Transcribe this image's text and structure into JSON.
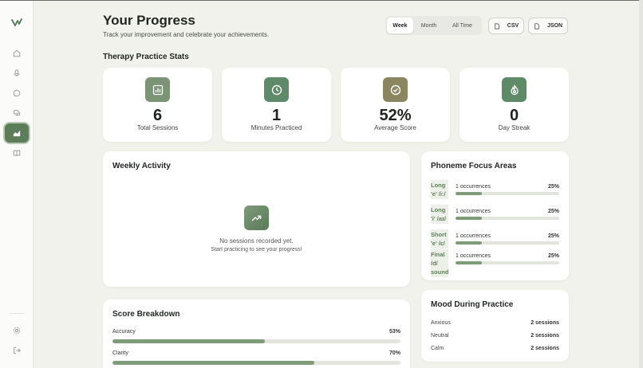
{
  "header": {
    "title": "Your Progress",
    "subtitle": "Track your improvement and celebrate your achievements."
  },
  "range": {
    "options": [
      "Week",
      "Month",
      "All Time"
    ],
    "selected": "Week"
  },
  "export": {
    "csv_label": "CSV",
    "json_label": "JSON"
  },
  "stats_section": {
    "title": "Therapy Practice Stats",
    "cards": [
      {
        "value": "6",
        "label": "Total Sessions",
        "icon": "bar-chart-icon",
        "color": "#7b9476"
      },
      {
        "value": "1",
        "label": "Minutes Practiced",
        "icon": "clock-icon",
        "color": "#5f8a6a"
      },
      {
        "value": "52%",
        "label": "Average Score",
        "icon": "check-circle-icon",
        "color": "#8b8660"
      },
      {
        "value": "0",
        "label": "Day Streak",
        "icon": "flame-icon",
        "color": "#5e8a68"
      }
    ]
  },
  "weekly_activity": {
    "title": "Weekly Activity",
    "empty_title": "No sessions recorded yet.",
    "empty_subtitle": "Start practicing to see your progress!"
  },
  "score_breakdown": {
    "title": "Score Breakdown",
    "rows": [
      {
        "label": "Accuracy",
        "percent_text": "53%",
        "percent": 53
      },
      {
        "label": "Clarity",
        "percent_text": "70%",
        "percent": 70
      }
    ]
  },
  "phoneme": {
    "title": "Phoneme Focus Areas",
    "rows": [
      {
        "line1": "Long",
        "line2": "'e' /iː/",
        "count": "1 occurrences",
        "percent_text": "25%",
        "percent": 25
      },
      {
        "line1": "Long",
        "line2": "'i' /aɪ/",
        "count": "1 occurrences",
        "percent_text": "25%",
        "percent": 25
      },
      {
        "line1": "Short",
        "line2": "'e' /ɛ/",
        "count": "1 occurrences",
        "percent_text": "25%",
        "percent": 25
      },
      {
        "line1": "Final",
        "line2": "/d/",
        "line3": "sound",
        "count": "1 occurrences",
        "percent_text": "25%",
        "percent": 25
      }
    ]
  },
  "mood": {
    "title": "Mood During Practice",
    "rows": [
      {
        "label": "Anxious",
        "count": "2 sessions"
      },
      {
        "label": "Neutral",
        "count": "2 sessions"
      },
      {
        "label": "Calm",
        "count": "2 sessions"
      }
    ]
  }
}
